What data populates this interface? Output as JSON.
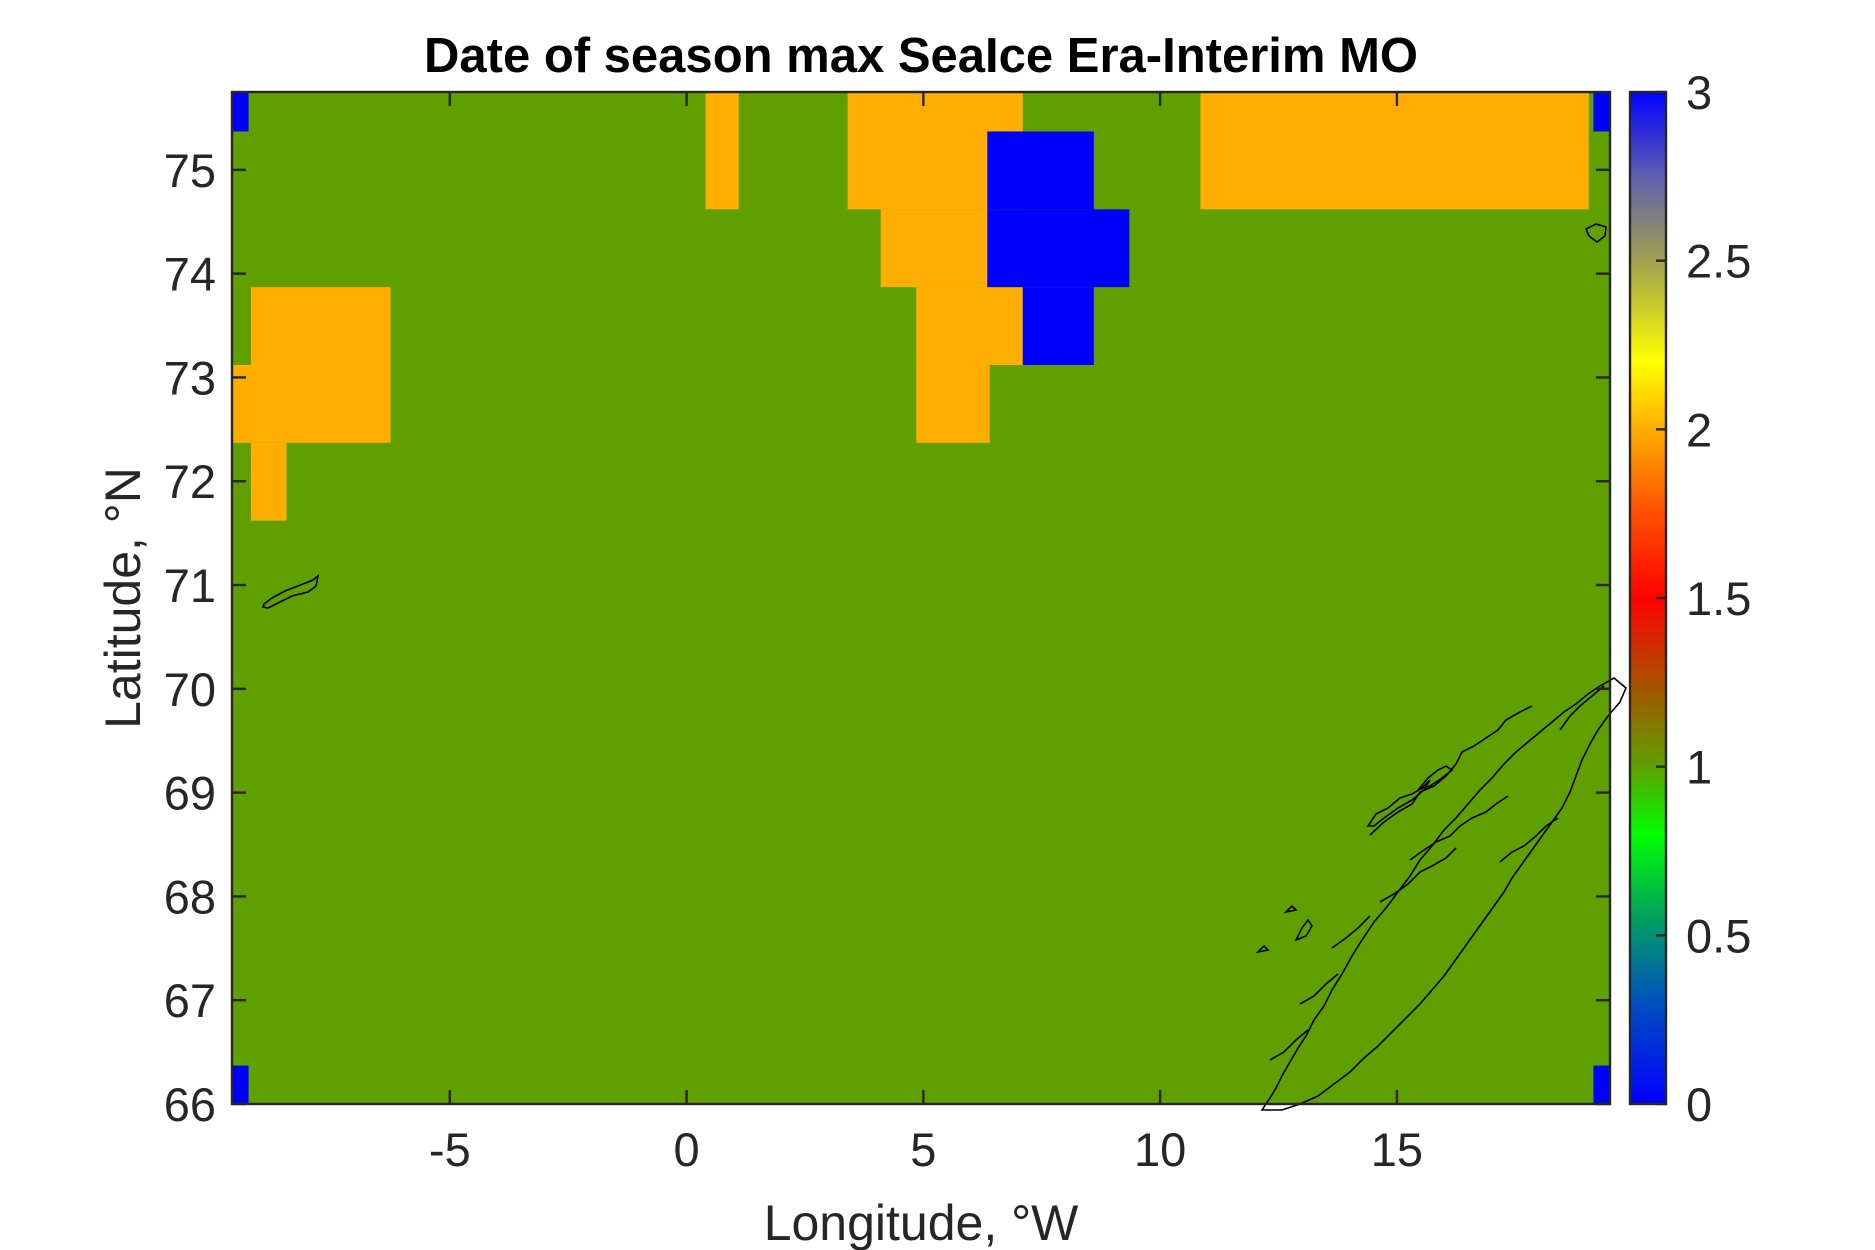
{
  "chart_data": {
    "type": "heatmap",
    "title": "Date of season max SeaIce Era-Interim MO",
    "xlabel": "Longitude, °W",
    "ylabel": "Latitude, °N",
    "xlim": [
      -9.6,
      19.5
    ],
    "ylim": [
      66,
      75.75
    ],
    "xticks": [
      -5,
      0,
      5,
      10,
      15
    ],
    "yticks": [
      66,
      67,
      68,
      69,
      70,
      71,
      72,
      73,
      74,
      75
    ],
    "grid": false,
    "background_value": 1,
    "cells": [
      {
        "x0": -9.6,
        "x1": -9.25,
        "y0": 75.37,
        "y1": 75.75,
        "value": 3
      },
      {
        "x0": -9.6,
        "x1": -9.25,
        "y0": 66.0,
        "y1": 66.37,
        "value": 3
      },
      {
        "x0": 19.15,
        "x1": 19.5,
        "y0": 75.37,
        "y1": 75.75,
        "value": 3
      },
      {
        "x0": 19.15,
        "x1": 19.5,
        "y0": 66.0,
        "y1": 66.37,
        "value": 3
      },
      {
        "x0": -9.6,
        "x1": -9.2,
        "y0": 72.37,
        "y1": 73.12,
        "value": 2
      },
      {
        "x0": -9.2,
        "x1": -6.25,
        "y0": 72.37,
        "y1": 73.87,
        "value": 2
      },
      {
        "x0": -9.2,
        "x1": -8.45,
        "y0": 71.62,
        "y1": 72.37,
        "value": 2
      },
      {
        "x0": 0.4,
        "x1": 1.1,
        "y0": 74.62,
        "y1": 75.75,
        "value": 2
      },
      {
        "x0": 3.4,
        "x1": 7.1,
        "y0": 74.62,
        "y1": 75.75,
        "value": 2
      },
      {
        "x0": 4.1,
        "x1": 6.4,
        "y0": 73.87,
        "y1": 74.62,
        "value": 2
      },
      {
        "x0": 4.85,
        "x1": 7.1,
        "y0": 73.12,
        "y1": 73.87,
        "value": 2
      },
      {
        "x0": 4.85,
        "x1": 6.4,
        "y0": 72.37,
        "y1": 73.12,
        "value": 2
      },
      {
        "x0": 10.85,
        "x1": 19.05,
        "y0": 74.62,
        "y1": 75.75,
        "value": 2
      },
      {
        "x0": 6.35,
        "x1": 8.6,
        "y0": 74.62,
        "y1": 75.37,
        "value": 3
      },
      {
        "x0": 6.35,
        "x1": 9.35,
        "y0": 73.87,
        "y1": 74.62,
        "value": 3
      },
      {
        "x0": 7.1,
        "x1": 8.6,
        "y0": 73.12,
        "y1": 73.87,
        "value": 3
      }
    ],
    "colorbar": {
      "range": [
        0,
        3
      ],
      "ticks": [
        "0",
        "0.5",
        "1",
        "1.5",
        "2",
        "2.5",
        "3"
      ]
    },
    "colormap": [
      {
        "v": 0,
        "c": "#0000ff"
      },
      {
        "v": 0.3,
        "c": "#0050c0"
      },
      {
        "v": 0.55,
        "c": "#00a060"
      },
      {
        "v": 0.8,
        "c": "#00ff00"
      },
      {
        "v": 1.0,
        "c": "#5fa000"
      },
      {
        "v": 1.2,
        "c": "#9a6000"
      },
      {
        "v": 1.5,
        "c": "#ff0000"
      },
      {
        "v": 1.8,
        "c": "#ff6000"
      },
      {
        "v": 2.0,
        "c": "#ffae00"
      },
      {
        "v": 2.2,
        "c": "#ffff00"
      },
      {
        "v": 2.5,
        "c": "#a0a050"
      },
      {
        "v": 2.75,
        "c": "#6060b0"
      },
      {
        "v": 3.0,
        "c": "#0000ff"
      }
    ],
    "cell_colors": {
      "1": "#5fa000",
      "2": "#ffae00",
      "3": "#0000ff"
    }
  }
}
